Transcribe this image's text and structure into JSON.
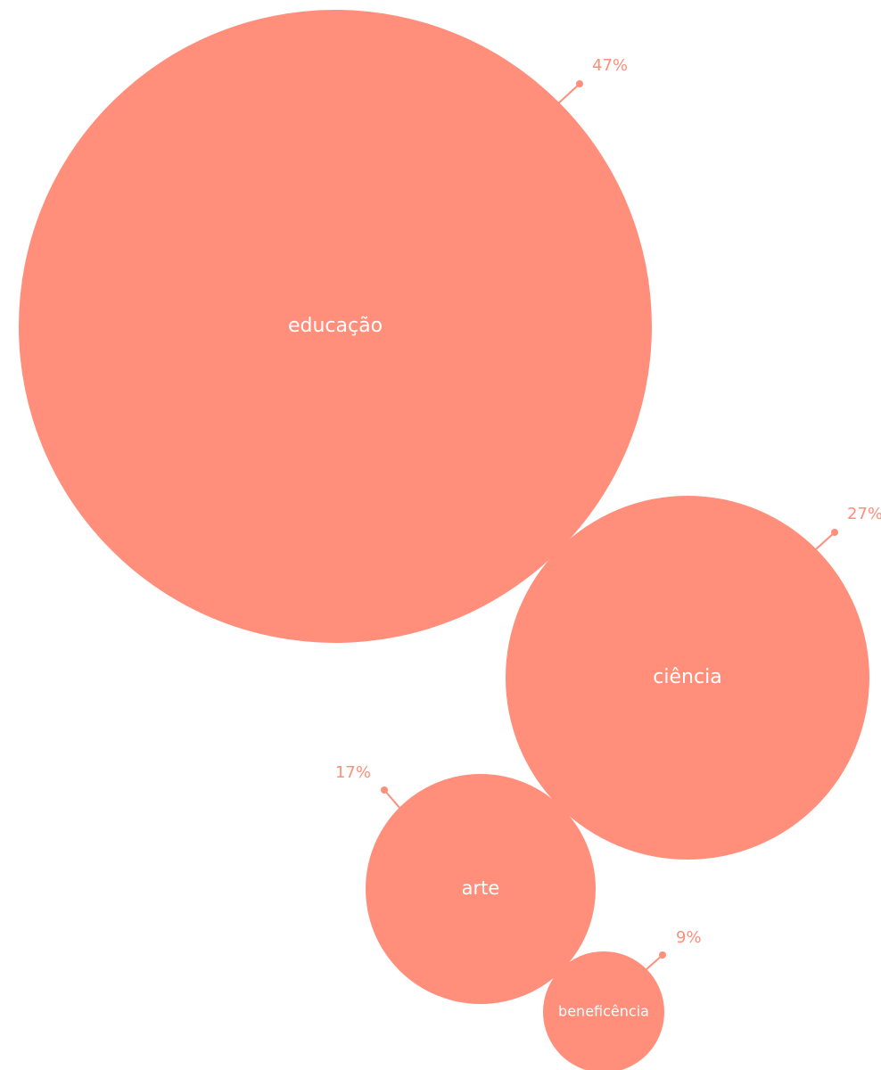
{
  "chart_data": {
    "type": "bubble",
    "color": "#ff8e7a",
    "label_color": "#ffffff",
    "items": [
      {
        "label": "educação",
        "value": 47,
        "value_label": "47%"
      },
      {
        "label": "ciência",
        "value": 27,
        "value_label": "27%"
      },
      {
        "label": "arte",
        "value": 17,
        "value_label": "17%"
      },
      {
        "label": "beneficência",
        "value": 9,
        "value_label": "9%"
      }
    ]
  }
}
